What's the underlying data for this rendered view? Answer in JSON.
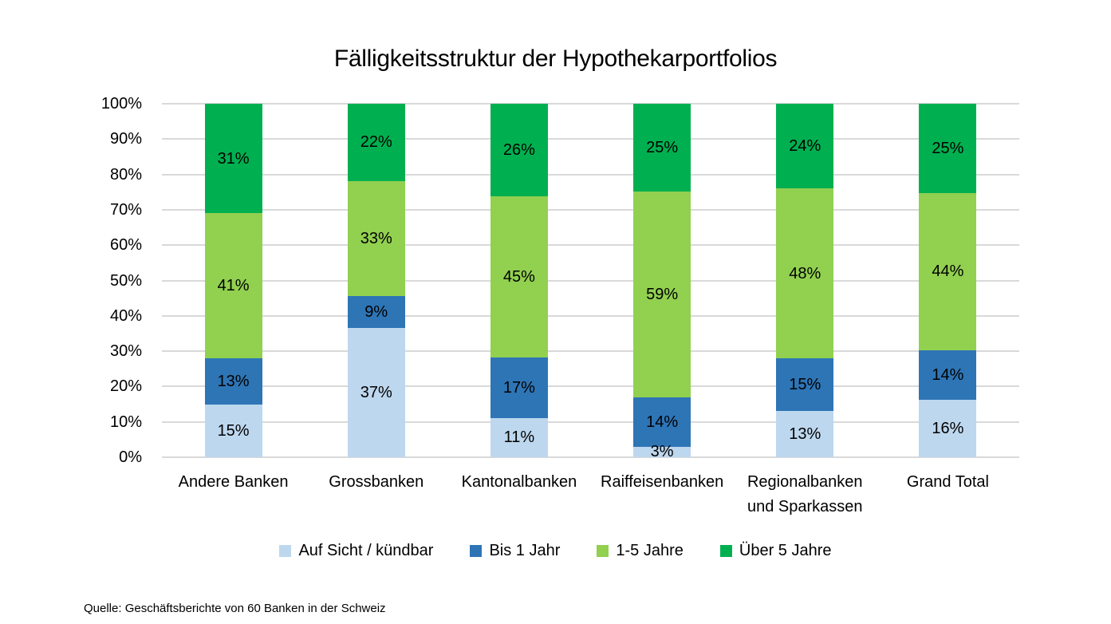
{
  "title": "Fälligkeitsstruktur der Hypothekarportfolios",
  "source": "Quelle: Geschäftsberichte von 60 Banken in der Schweiz",
  "colors": {
    "auf_sicht": "#BDD7EE",
    "bis_1_jahr": "#2E75B6",
    "jahre_1_5": "#92D050",
    "ueber_5_jahre": "#00B050",
    "gridline": "#D9D9D9",
    "text": "#000000",
    "background": "#FFFFFF"
  },
  "chart_data": {
    "type": "bar",
    "stacked": true,
    "percent_stacked": true,
    "title": "Fälligkeitsstruktur der Hypothekarportfolios",
    "xlabel": "",
    "ylabel": "",
    "ylim": [
      0,
      100
    ],
    "grid": true,
    "legend_position": "bottom",
    "categories": [
      "Andere Banken",
      "Grossbanken",
      "Kantonalbanken",
      "Raiffeisenbanken",
      "Regionalbanken und Sparkassen",
      "Grand Total"
    ],
    "series": [
      {
        "name": "Auf Sicht / kündbar",
        "color": "#BDD7EE",
        "values": [
          15,
          37,
          11,
          3,
          13,
          16
        ]
      },
      {
        "name": "Bis 1 Jahr",
        "color": "#2E75B6",
        "values": [
          13,
          9,
          17,
          14,
          15,
          14
        ]
      },
      {
        "name": "1-5 Jahre",
        "color": "#92D050",
        "values": [
          41,
          33,
          45,
          59,
          48,
          44
        ]
      },
      {
        "name": "Über 5 Jahre",
        "color": "#00B050",
        "values": [
          31,
          22,
          26,
          25,
          24,
          25
        ]
      }
    ],
    "data_label_suffix": "%",
    "y_axis": {
      "ticks": [
        "0%",
        "10%",
        "20%",
        "30%",
        "40%",
        "50%",
        "60%",
        "70%",
        "80%",
        "90%",
        "100%"
      ],
      "tick_step": 10
    }
  }
}
